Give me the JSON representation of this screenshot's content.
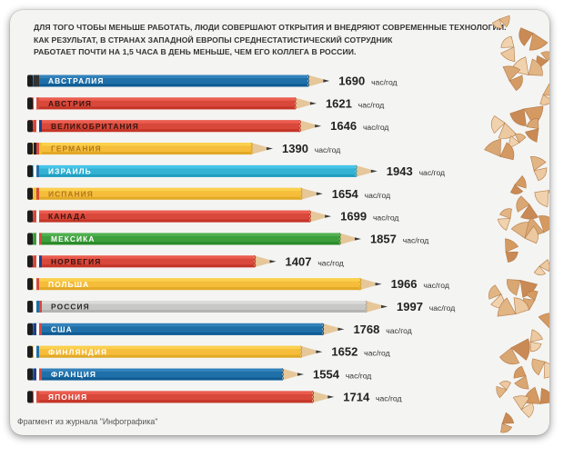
{
  "intro_lines": [
    "ДЛЯ ТОГО ЧТОБЫ МЕНЬШЕ РАБОТАТЬ, ЛЮДИ СОВЕРШАЮТ ОТКРЫТИЯ И ВНЕДРЯЮТ СОВРЕМЕННЫЕ ТЕХНОЛОГИИ.",
    "КАК РЕЗУЛЬТАТ, В СТРАНАХ ЗАПАДНОЙ ЕВРОПЫ СРЕДНЕСТАТИСТИЧЕСКИЙ СОТРУДНИК",
    "РАБОТАЕТ ПОЧТИ НА 1,5 ЧАСА В ДЕНЬ МЕНЬШЕ, ЧЕМ ЕГО КОЛЛЕГА В РОССИИ."
  ],
  "footer": "Фрагмент из журнала \"Инфографика\"",
  "chart_data": {
    "type": "bar",
    "orientation": "horizontal",
    "style": "pencils",
    "unit": "час/год",
    "categories": [
      "АВСТРАЛИЯ",
      "АВСТРИЯ",
      "ВЕЛИКОБРИТАНИЯ",
      "ГЕРМАНИЯ",
      "ИЗРАИЛЬ",
      "ИСПАНИЯ",
      "КАНАДА",
      "МЕКСИКА",
      "НОРВЕГИЯ",
      "ПОЛЬША",
      "РОССИЯ",
      "США",
      "ФИНЛЯНДИЯ",
      "ФРАНЦИЯ",
      "ЯПОНИЯ"
    ],
    "values": [
      1690,
      1621,
      1646,
      1390,
      1943,
      1654,
      1699,
      1857,
      1407,
      1966,
      1997,
      1768,
      1652,
      1554,
      1714
    ],
    "pencil_colors": [
      "#1f6fa8",
      "#d8493b",
      "#d8493b",
      "#f5bd3a",
      "#33b2d4",
      "#f5bd3a",
      "#d8493b",
      "#3d9e3c",
      "#d8493b",
      "#f5bd3a",
      "#c8c8c6",
      "#1f6fa8",
      "#f5bd3a",
      "#1f6fa8",
      "#d8493b"
    ],
    "label_colors": [
      "#ffffff",
      "#3a1410",
      "#3a1410",
      "#b0781e",
      "#ffffff",
      "#b0781e",
      "#3a1410",
      "#ffffff",
      "#3a1410",
      "#ffffff",
      "#2a2a2a",
      "#ffffff",
      "#ffffff",
      "#ffffff",
      "#ffffff"
    ],
    "flag_colors": [
      [
        "#333333",
        "#333333"
      ],
      [
        "#ffffff",
        "#d8493b"
      ],
      [
        "#d8493b",
        "#ffffff",
        "#1f3f8a"
      ],
      [
        "#222222",
        "#d8493b",
        "#f0c030"
      ],
      [
        "#ffffff",
        "#1f6fa8"
      ],
      [
        "#f0c030",
        "#d8493b"
      ],
      [
        "#d8493b",
        "#ffffff"
      ],
      [
        "#3d9e3c",
        "#ffffff",
        "#d8493b"
      ],
      [
        "#d8493b",
        "#ffffff",
        "#1f3f8a"
      ],
      [
        "#ffffff",
        "#d8493b"
      ],
      [
        "#ffffff",
        "#1f6fa8",
        "#d8493b"
      ],
      [
        "#1f3f8a",
        "#ffffff",
        "#d8493b"
      ],
      [
        "#ffffff",
        "#1f6fa8"
      ],
      [
        "#1f3f8a",
        "#ffffff",
        "#d8493b"
      ],
      [
        "#ffffff",
        "#d8493b"
      ]
    ]
  }
}
